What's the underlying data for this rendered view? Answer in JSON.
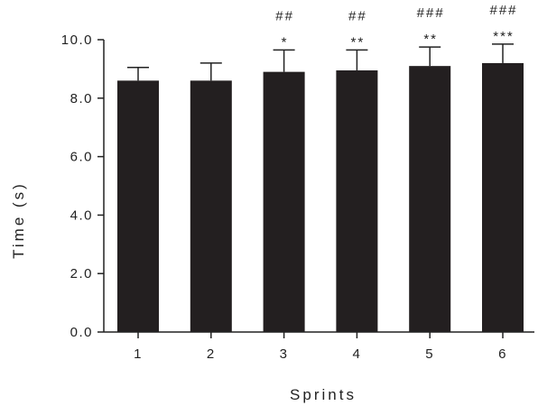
{
  "chart_data": {
    "type": "bar",
    "title": "",
    "xlabel": "Sprints",
    "ylabel": "Time (s)",
    "categories": [
      "1",
      "2",
      "3",
      "4",
      "5",
      "6"
    ],
    "values": [
      8.6,
      8.6,
      8.9,
      8.95,
      9.1,
      9.2
    ],
    "error": [
      0.45,
      0.6,
      0.75,
      0.7,
      0.65,
      0.65
    ],
    "significance": [
      "",
      "",
      "*",
      "**",
      "**",
      "***"
    ],
    "significance_secondary": [
      "",
      "",
      "##",
      "##",
      "###",
      "###"
    ],
    "ylim": [
      0,
      10
    ],
    "yticks": [
      "0.0",
      "2.0",
      "4.0",
      "6.0",
      "8.0",
      "10.0"
    ],
    "grid": false,
    "legend": "none",
    "bar_color": "#231f20"
  }
}
